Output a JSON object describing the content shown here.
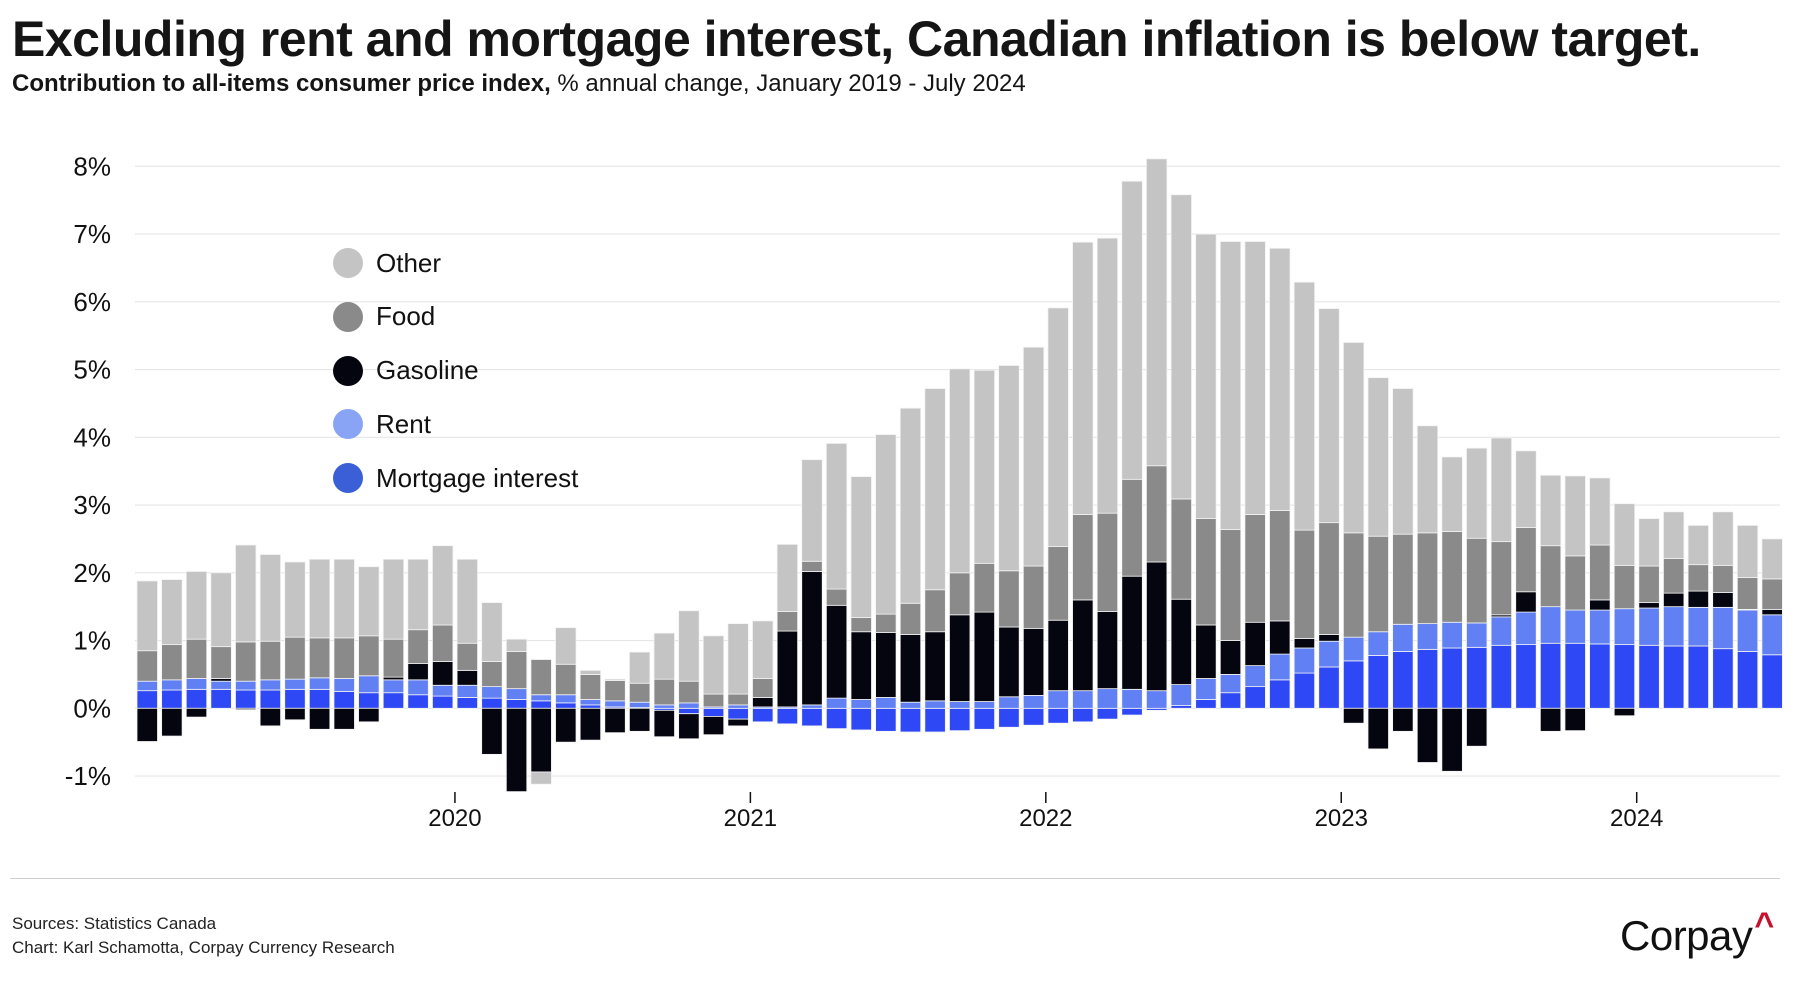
{
  "header": {
    "title": "Excluding rent and mortgage interest, Canadian inflation is below target.",
    "subtitle_bold": "Contribution to all-items consumer price index,",
    "subtitle_rest": " % annual change, January 2019 - July 2024"
  },
  "footer": {
    "sources": "Sources: Statistics Canada",
    "credit": "Chart: Karl Schamotta, Corpay Currency Research",
    "logo_text": "Corpay",
    "logo_mark": "^"
  },
  "chart_data": {
    "type": "bar",
    "stacked": true,
    "title": "Excluding rent and mortgage interest, Canadian inflation is below target.",
    "subtitle": "Contribution to all-items consumer price index, % annual change, January 2019 - July 2024",
    "xlabel": "",
    "ylabel": "",
    "ylim": [
      -1,
      8
    ],
    "yticks": [
      -1,
      0,
      1,
      2,
      3,
      4,
      5,
      6,
      7,
      8
    ],
    "ytick_labels": [
      "-1%",
      "0%",
      "1%",
      "2%",
      "3%",
      "4%",
      "5%",
      "6%",
      "7%",
      "8%"
    ],
    "xtick_labels": [
      "2020",
      "2021",
      "2022",
      "2023",
      "2024"
    ],
    "xtick_positions": [
      "2020-01",
      "2021-01",
      "2022-01",
      "2023-01",
      "2024-01"
    ],
    "grid": true,
    "legend_position": "top-left",
    "start_month": "2019-01",
    "categories": [
      "2019-01",
      "2019-02",
      "2019-03",
      "2019-04",
      "2019-05",
      "2019-06",
      "2019-07",
      "2019-08",
      "2019-09",
      "2019-10",
      "2019-11",
      "2019-12",
      "2020-01",
      "2020-02",
      "2020-03",
      "2020-04",
      "2020-05",
      "2020-06",
      "2020-07",
      "2020-08",
      "2020-09",
      "2020-10",
      "2020-11",
      "2020-12",
      "2021-01",
      "2021-02",
      "2021-03",
      "2021-04",
      "2021-05",
      "2021-06",
      "2021-07",
      "2021-08",
      "2021-09",
      "2021-10",
      "2021-11",
      "2021-12",
      "2022-01",
      "2022-02",
      "2022-03",
      "2022-04",
      "2022-05",
      "2022-06",
      "2022-07",
      "2022-08",
      "2022-09",
      "2022-10",
      "2022-11",
      "2022-12",
      "2023-01",
      "2023-02",
      "2023-03",
      "2023-04",
      "2023-05",
      "2023-06",
      "2023-07",
      "2023-08",
      "2023-09",
      "2023-10",
      "2023-11",
      "2023-12",
      "2024-01",
      "2024-02",
      "2024-03",
      "2024-04",
      "2024-05",
      "2024-06",
      "2024-07"
    ],
    "series": [
      {
        "name": "Mortgage interest",
        "color": "#2e48f5",
        "legend_color": "#3b5fd6",
        "values": [
          0.26,
          0.27,
          0.28,
          0.28,
          0.27,
          0.27,
          0.28,
          0.28,
          0.25,
          0.23,
          0.23,
          0.2,
          0.18,
          0.16,
          0.15,
          0.13,
          0.11,
          0.08,
          0.05,
          0.02,
          0.01,
          -0.03,
          -0.08,
          -0.12,
          -0.16,
          -0.2,
          -0.23,
          -0.26,
          -0.3,
          -0.32,
          -0.34,
          -0.35,
          -0.35,
          -0.33,
          -0.31,
          -0.28,
          -0.25,
          -0.22,
          -0.2,
          -0.16,
          -0.1,
          -0.03,
          0.04,
          0.13,
          0.23,
          0.32,
          0.42,
          0.52,
          0.61,
          0.7,
          0.78,
          0.84,
          0.87,
          0.89,
          0.9,
          0.93,
          0.94,
          0.96,
          0.96,
          0.95,
          0.94,
          0.93,
          0.92,
          0.92,
          0.88,
          0.84,
          0.79
        ]
      },
      {
        "name": "Rent",
        "color": "#6080f4",
        "legend_color": "#8aa4f5",
        "values": [
          0.14,
          0.15,
          0.16,
          0.12,
          0.13,
          0.15,
          0.15,
          0.17,
          0.19,
          0.25,
          0.19,
          0.22,
          0.16,
          0.18,
          0.17,
          0.16,
          0.09,
          0.12,
          0.08,
          0.09,
          0.08,
          0.05,
          0.08,
          0.02,
          0.05,
          0.02,
          0.02,
          0.05,
          0.15,
          0.13,
          0.16,
          0.09,
          0.11,
          0.1,
          0.1,
          0.17,
          0.19,
          0.26,
          0.26,
          0.29,
          0.28,
          0.26,
          0.31,
          0.31,
          0.27,
          0.31,
          0.38,
          0.37,
          0.38,
          0.35,
          0.35,
          0.4,
          0.38,
          0.38,
          0.36,
          0.42,
          0.48,
          0.54,
          0.49,
          0.5,
          0.53,
          0.55,
          0.58,
          0.57,
          0.61,
          0.61,
          0.59
        ]
      },
      {
        "name": "Gasoline",
        "color": "#05050f",
        "legend_color": "#05050f",
        "values": [
          -0.49,
          -0.41,
          -0.13,
          0.04,
          -0.02,
          -0.26,
          -0.17,
          -0.31,
          -0.31,
          -0.2,
          0.04,
          0.24,
          0.35,
          0.22,
          -0.68,
          -1.23,
          -0.94,
          -0.5,
          -0.47,
          -0.36,
          -0.34,
          -0.39,
          -0.37,
          -0.27,
          -0.1,
          0.14,
          1.12,
          1.97,
          1.37,
          1.0,
          0.96,
          1.0,
          1.02,
          1.28,
          1.32,
          1.03,
          0.99,
          1.04,
          1.34,
          1.14,
          1.67,
          1.9,
          1.26,
          0.79,
          0.5,
          0.64,
          0.49,
          0.14,
          0.1,
          -0.22,
          -0.6,
          -0.34,
          -0.8,
          -0.93,
          -0.56,
          0.03,
          0.3,
          -0.34,
          -0.33,
          0.15,
          -0.11,
          0.08,
          0.2,
          0.24,
          0.22,
          0.01,
          0.08
        ]
      },
      {
        "name": "Food",
        "color": "#8a8a8a",
        "legend_color": "#8a8a8a",
        "values": [
          0.45,
          0.52,
          0.58,
          0.47,
          0.58,
          0.57,
          0.62,
          0.59,
          0.6,
          0.59,
          0.56,
          0.5,
          0.54,
          0.4,
          0.37,
          0.55,
          0.52,
          0.45,
          0.37,
          0.3,
          0.28,
          0.38,
          0.32,
          0.19,
          0.16,
          0.28,
          0.29,
          0.15,
          0.24,
          0.21,
          0.27,
          0.46,
          0.62,
          0.62,
          0.72,
          0.83,
          0.92,
          1.09,
          1.26,
          1.45,
          1.43,
          1.42,
          1.48,
          1.57,
          1.64,
          1.59,
          1.63,
          1.6,
          1.65,
          1.54,
          1.41,
          1.33,
          1.34,
          1.34,
          1.25,
          1.08,
          0.95,
          0.9,
          0.8,
          0.81,
          0.64,
          0.54,
          0.51,
          0.39,
          0.4,
          0.47,
          0.45
        ]
      },
      {
        "name": "Other",
        "color": "#c4c4c4",
        "legend_color": "#c4c4c4",
        "values": [
          1.03,
          0.96,
          1.0,
          1.09,
          1.43,
          1.28,
          1.11,
          1.16,
          1.16,
          1.02,
          1.18,
          1.04,
          1.17,
          1.24,
          0.87,
          0.18,
          -0.18,
          0.54,
          0.06,
          0.02,
          0.46,
          0.68,
          1.04,
          0.86,
          1.04,
          0.85,
          0.99,
          1.5,
          2.15,
          2.08,
          2.65,
          2.88,
          2.97,
          3.01,
          2.85,
          3.03,
          3.23,
          3.52,
          4.02,
          4.06,
          4.4,
          4.53,
          4.49,
          4.2,
          4.25,
          4.03,
          3.87,
          3.66,
          3.16,
          2.81,
          2.34,
          2.15,
          1.58,
          1.1,
          1.33,
          1.53,
          1.13,
          1.04,
          1.18,
          0.99,
          0.91,
          0.7,
          0.69,
          0.58,
          0.79,
          0.77,
          0.59
        ]
      }
    ],
    "legend": [
      "Other",
      "Food",
      "Gasoline",
      "Rent",
      "Mortgage interest"
    ]
  }
}
